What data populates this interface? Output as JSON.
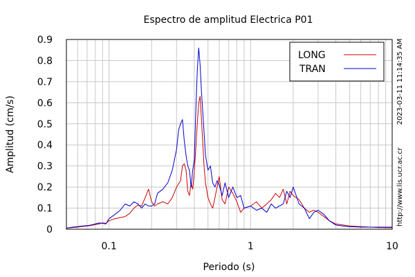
{
  "chart_data": {
    "type": "line",
    "title": "Espectro de amplitud Electrica P01",
    "xlabel": "Periodo (s)",
    "ylabel": "Amplitud (cm/s)",
    "x_scale": "log",
    "xlim": [
      0.05,
      10
    ],
    "ylim": [
      0,
      0.9
    ],
    "x_ticks": [
      0.1,
      1,
      10
    ],
    "x_tick_labels": [
      "0.1",
      "1",
      "10"
    ],
    "y_ticks": [
      0,
      0.1,
      0.2,
      0.3,
      0.4,
      0.5,
      0.6,
      0.7,
      0.8,
      0.9
    ],
    "y_tick_labels": [
      "0",
      "0.1",
      "0.2",
      "0.3",
      "0.4",
      "0.5",
      "0.6",
      "0.7",
      "0.8",
      "0.9"
    ],
    "grid": true,
    "legend_position": "top-right",
    "timestamp": "2023-03-11 11:14:35 AM",
    "source": "http://www.lis.ucr.ac.cr",
    "series": [
      {
        "name": "LONG",
        "color": "#cc0000",
        "x": [
          0.05,
          0.055,
          0.06,
          0.065,
          0.07,
          0.075,
          0.08,
          0.085,
          0.09,
          0.095,
          0.1,
          0.11,
          0.12,
          0.13,
          0.14,
          0.15,
          0.16,
          0.17,
          0.18,
          0.19,
          0.2,
          0.21,
          0.22,
          0.24,
          0.26,
          0.28,
          0.3,
          0.32,
          0.33,
          0.34,
          0.35,
          0.36,
          0.37,
          0.38,
          0.39,
          0.4,
          0.41,
          0.42,
          0.43,
          0.44,
          0.45,
          0.46,
          0.47,
          0.48,
          0.5,
          0.52,
          0.54,
          0.56,
          0.58,
          0.6,
          0.63,
          0.66,
          0.7,
          0.75,
          0.8,
          0.85,
          0.9,
          1.0,
          1.1,
          1.2,
          1.3,
          1.4,
          1.5,
          1.6,
          1.7,
          1.8,
          1.9,
          2.0,
          2.2,
          2.4,
          2.6,
          2.8,
          3.0,
          3.3,
          3.6,
          4.0,
          4.5,
          5.0,
          6.0,
          7.0,
          8.0,
          10.0
        ],
        "y": [
          0.005,
          0.008,
          0.01,
          0.013,
          0.015,
          0.018,
          0.022,
          0.025,
          0.03,
          0.028,
          0.04,
          0.05,
          0.055,
          0.06,
          0.075,
          0.1,
          0.115,
          0.11,
          0.15,
          0.19,
          0.13,
          0.11,
          0.12,
          0.13,
          0.12,
          0.15,
          0.2,
          0.23,
          0.3,
          0.31,
          0.28,
          0.18,
          0.16,
          0.22,
          0.19,
          0.27,
          0.38,
          0.5,
          0.6,
          0.63,
          0.52,
          0.4,
          0.29,
          0.22,
          0.15,
          0.12,
          0.1,
          0.15,
          0.2,
          0.25,
          0.14,
          0.12,
          0.2,
          0.17,
          0.13,
          0.08,
          0.1,
          0.11,
          0.13,
          0.1,
          0.12,
          0.14,
          0.17,
          0.15,
          0.19,
          0.12,
          0.18,
          0.16,
          0.14,
          0.1,
          0.08,
          0.09,
          0.08,
          0.06,
          0.04,
          0.025,
          0.02,
          0.015,
          0.012,
          0.01,
          0.008,
          0.007
        ]
      },
      {
        "name": "TRAN",
        "color": "#0000cc",
        "x": [
          0.05,
          0.055,
          0.06,
          0.065,
          0.07,
          0.075,
          0.08,
          0.085,
          0.09,
          0.095,
          0.1,
          0.11,
          0.12,
          0.13,
          0.14,
          0.15,
          0.16,
          0.17,
          0.18,
          0.19,
          0.2,
          0.21,
          0.22,
          0.24,
          0.26,
          0.28,
          0.3,
          0.31,
          0.32,
          0.33,
          0.34,
          0.35,
          0.36,
          0.37,
          0.38,
          0.39,
          0.4,
          0.41,
          0.42,
          0.43,
          0.44,
          0.45,
          0.46,
          0.47,
          0.48,
          0.5,
          0.52,
          0.54,
          0.56,
          0.58,
          0.6,
          0.63,
          0.66,
          0.7,
          0.75,
          0.8,
          0.85,
          0.9,
          1.0,
          1.1,
          1.2,
          1.3,
          1.4,
          1.5,
          1.6,
          1.7,
          1.8,
          1.9,
          2.0,
          2.2,
          2.4,
          2.6,
          2.8,
          3.0,
          3.3,
          3.6,
          4.0,
          4.5,
          5.0,
          6.0,
          7.0,
          8.0,
          10.0
        ],
        "y": [
          0.005,
          0.01,
          0.012,
          0.015,
          0.017,
          0.02,
          0.025,
          0.03,
          0.028,
          0.025,
          0.05,
          0.07,
          0.09,
          0.12,
          0.11,
          0.13,
          0.12,
          0.1,
          0.12,
          0.11,
          0.11,
          0.12,
          0.17,
          0.19,
          0.22,
          0.28,
          0.38,
          0.47,
          0.5,
          0.52,
          0.42,
          0.35,
          0.3,
          0.28,
          0.2,
          0.28,
          0.33,
          0.55,
          0.75,
          0.86,
          0.78,
          0.65,
          0.55,
          0.45,
          0.35,
          0.28,
          0.3,
          0.22,
          0.2,
          0.23,
          0.21,
          0.16,
          0.22,
          0.15,
          0.2,
          0.15,
          0.16,
          0.1,
          0.11,
          0.09,
          0.1,
          0.08,
          0.12,
          0.1,
          0.11,
          0.12,
          0.18,
          0.15,
          0.2,
          0.12,
          0.1,
          0.05,
          0.08,
          0.09,
          0.07,
          0.04,
          0.02,
          0.015,
          0.012,
          0.01,
          0.01,
          0.01,
          0.01
        ]
      }
    ]
  }
}
